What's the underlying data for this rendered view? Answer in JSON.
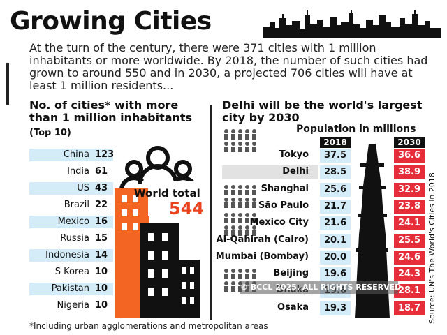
{
  "title": "Growing Cities",
  "intro": "At the turn of the century, there were 371 cities with 1 million inhabitants or more worldwide. By 2018, the number of such cities had grown to around 550 and in 2030, a projected 706 cities will have at least 1 million residents...",
  "footnote": "*Including urban agglomerations and metropolitan areas",
  "watermark": "© BCCL 2025. ALL RIGHTS RESERVED.",
  "source": "Source: UN's The World's Cities in 2018",
  "colors": {
    "orange": "#f26522",
    "red": "#e52e3a",
    "light_blue": "#d3ecf8",
    "dark": "#111111"
  },
  "chart_data": [
    {
      "type": "bar",
      "title": "No. of cities* with more than 1 million inhabitants",
      "subtitle": "(Top 10)",
      "categories": [
        "China",
        "India",
        "US",
        "Brazil",
        "Mexico",
        "Russia",
        "Indonesia",
        "S Korea",
        "Pakistan",
        "Nigeria"
      ],
      "values": [
        123,
        61,
        43,
        22,
        16,
        15,
        14,
        10,
        10,
        10
      ],
      "total_label": "World total",
      "total": 544
    },
    {
      "type": "table",
      "title": "Delhi will be the world's largest city by 2030",
      "subtitle": "Population in millions",
      "columns": [
        "2018",
        "2030"
      ],
      "categories": [
        "Tokyo",
        "Delhi",
        "Shanghai",
        "São Paulo",
        "Mexico City",
        "Al-Qahirah (Cairo)",
        "Mumbai (Bombay)",
        "Beijing",
        "Dhaka",
        "Osaka"
      ],
      "series": [
        {
          "name": "2018",
          "values": [
            37.5,
            28.5,
            25.6,
            21.7,
            21.6,
            20.1,
            20.0,
            19.6,
            19.6,
            19.3
          ]
        },
        {
          "name": "2030",
          "values": [
            36.6,
            38.9,
            32.9,
            23.8,
            24.1,
            25.5,
            24.6,
            24.3,
            28.1,
            18.7
          ]
        }
      ]
    }
  ]
}
